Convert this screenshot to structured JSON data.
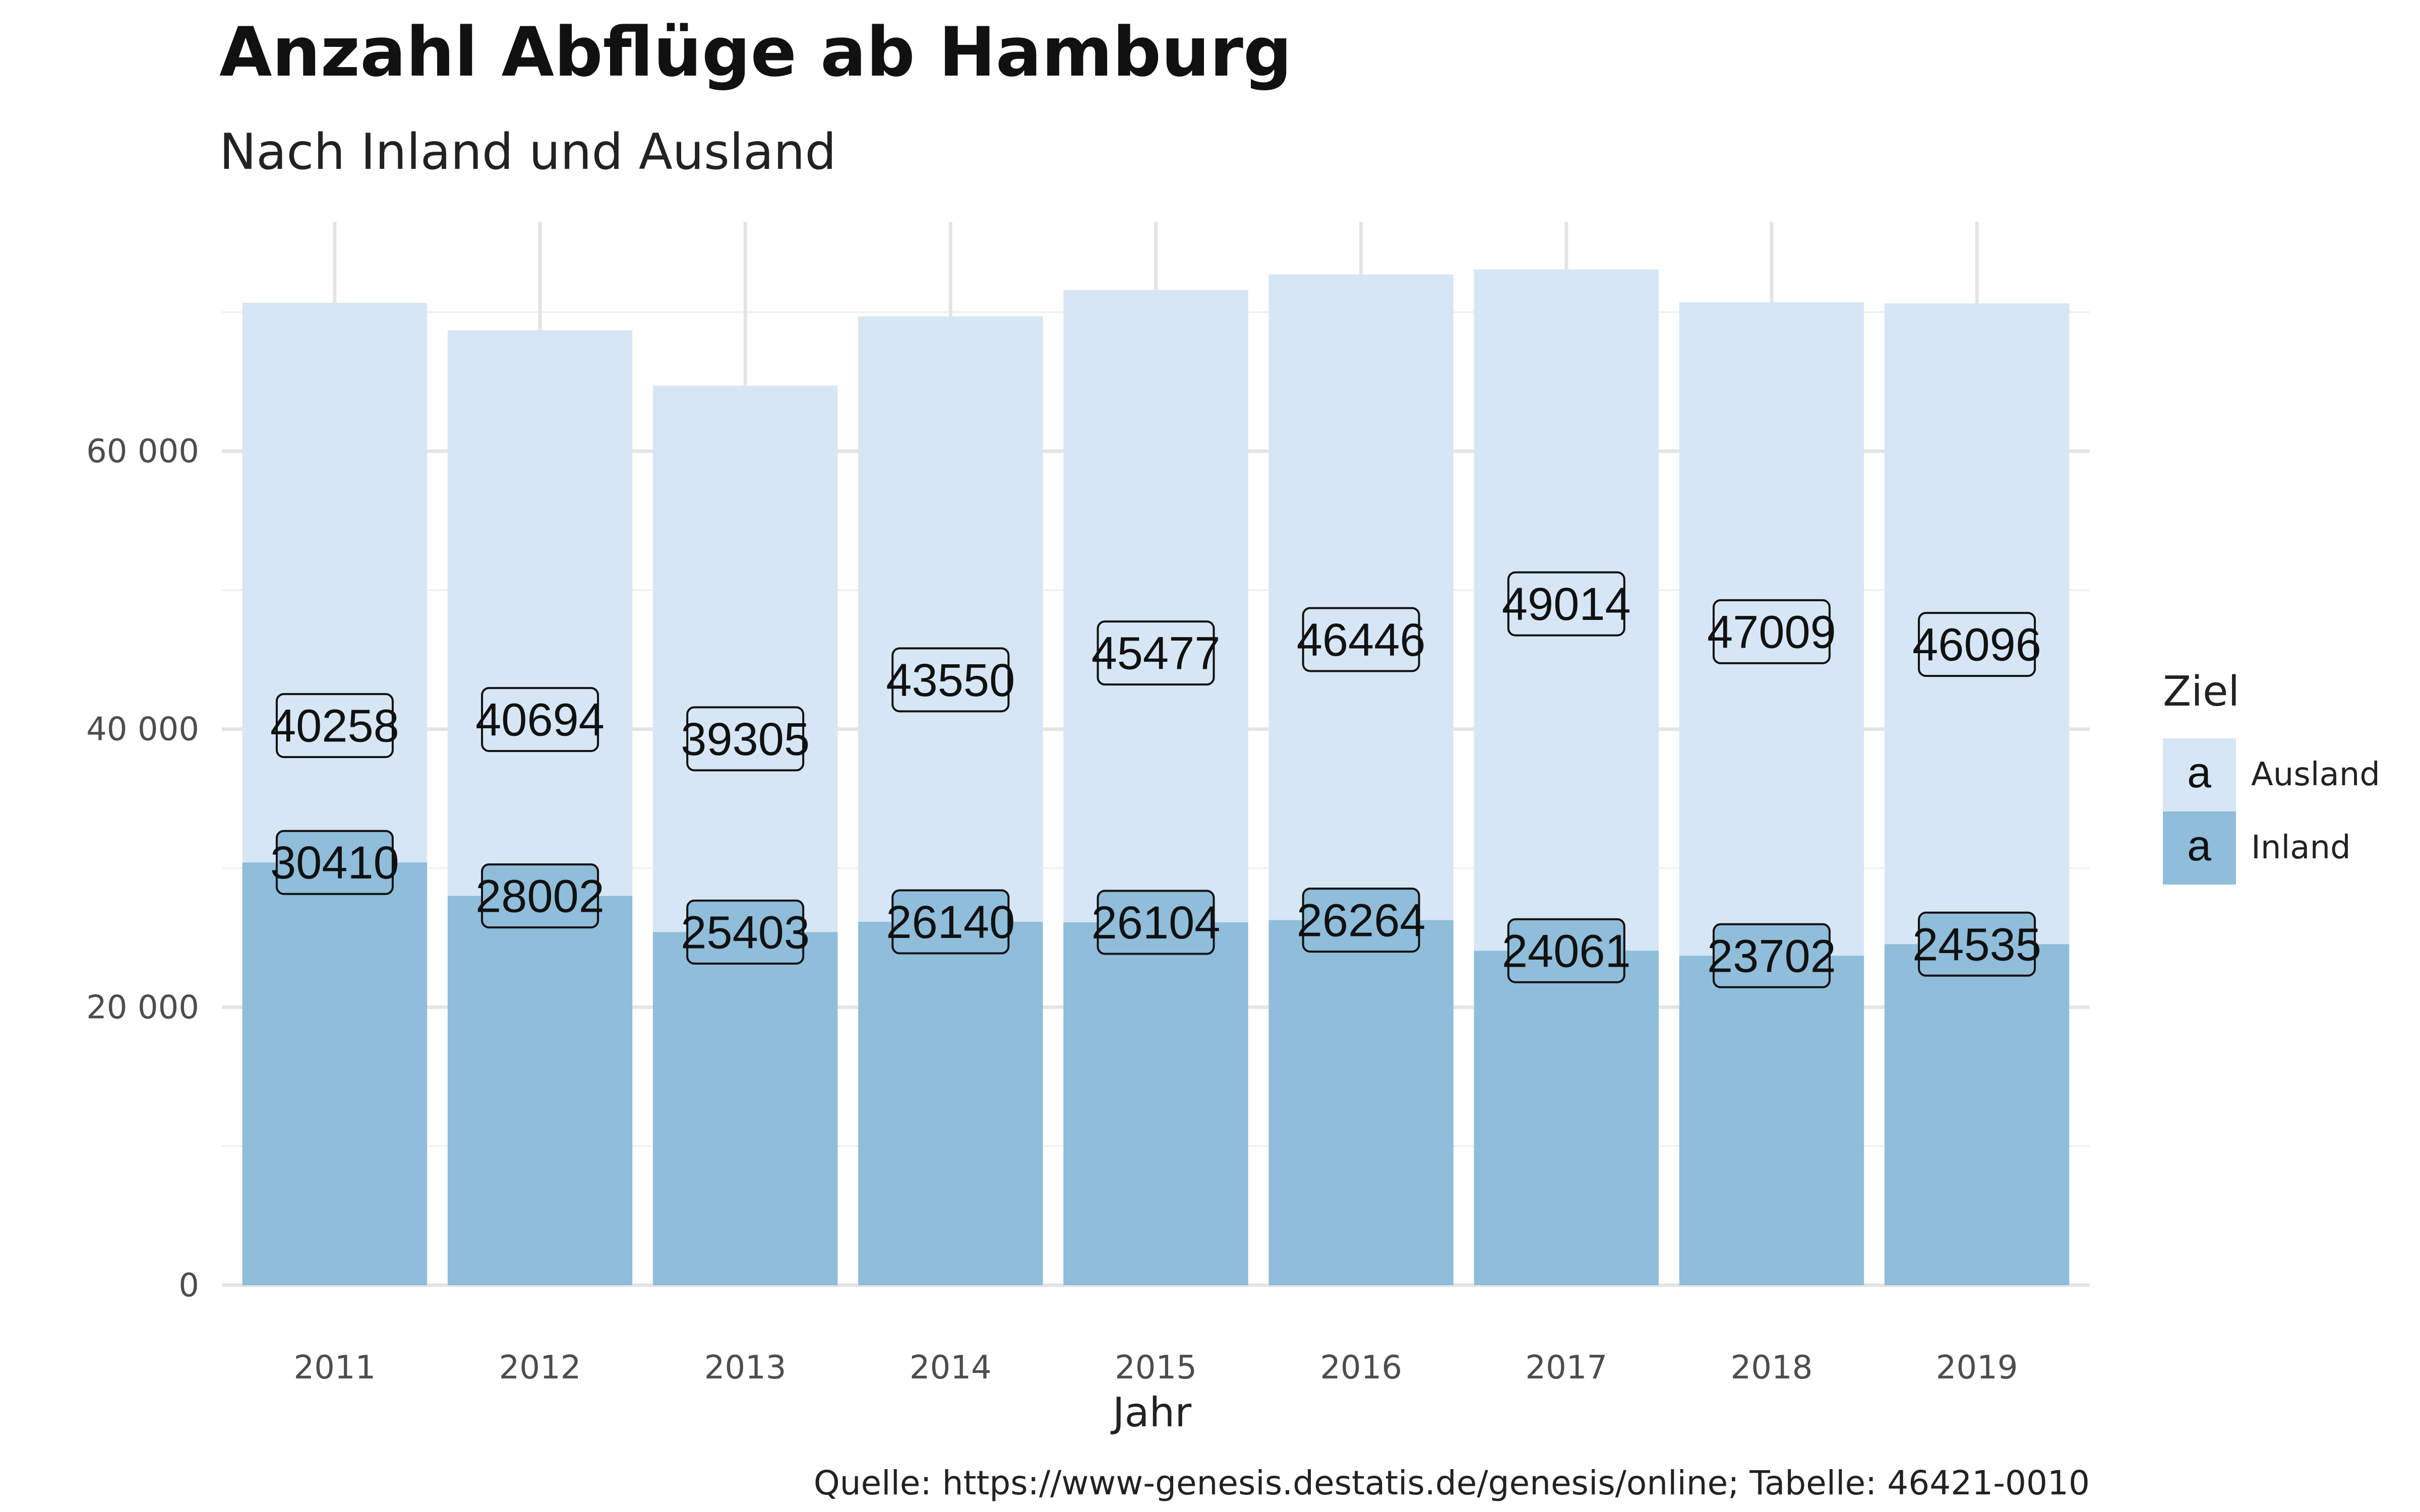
{
  "chart_data": {
    "type": "bar",
    "stacked": true,
    "title": "Anzahl Abflüge ab Hamburg",
    "subtitle": "Nach Inland und Ausland",
    "xlabel": "Jahr",
    "ylabel": "",
    "caption": "Quelle: https://www-genesis.destatis.de/genesis/online; Tabelle: 46421-0010",
    "categories": [
      "2011",
      "2012",
      "2013",
      "2014",
      "2015",
      "2016",
      "2017",
      "2018",
      "2019"
    ],
    "ylim": [
      0,
      76500
    ],
    "yticks": [
      0,
      20000,
      40000,
      60000
    ],
    "ytick_labels": [
      "0",
      "20 000",
      "40 000",
      "60 000"
    ],
    "grid": true,
    "legend": {
      "title": "Ziel",
      "placement": "right",
      "key_glyph": "a",
      "entries": [
        "Ausland",
        "Inland"
      ]
    },
    "series": [
      {
        "name": "Inland",
        "color": "#8fbdda",
        "values": [
          30410,
          28002,
          25403,
          26140,
          26104,
          26264,
          24061,
          23702,
          24535
        ]
      },
      {
        "name": "Ausland",
        "color": "#d6e6f5",
        "values": [
          40258,
          40694,
          39305,
          43550,
          45477,
          46446,
          49014,
          47009,
          46096
        ]
      }
    ]
  }
}
